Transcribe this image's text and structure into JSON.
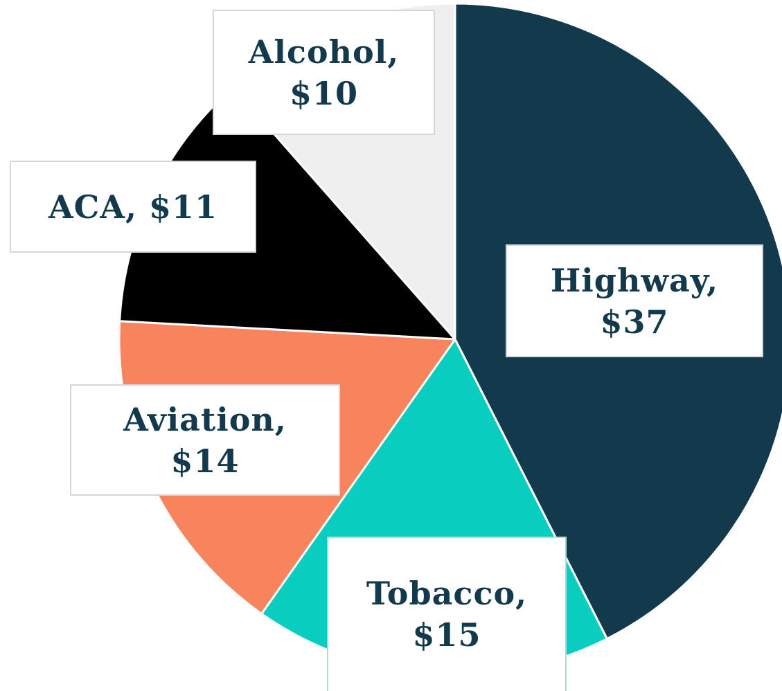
{
  "chart_data": {
    "type": "pie",
    "values": [
      37,
      15,
      14,
      11,
      10
    ],
    "value_labels": [
      "Highway, $37",
      "Tobacco, $15",
      "Aviation, $14",
      "ACA, $11",
      "Alcohol, $10"
    ],
    "colors": [
      "#133a4c",
      "#08cdbf",
      "#f8845e",
      "#000000",
      "#efefef"
    ]
  }
}
